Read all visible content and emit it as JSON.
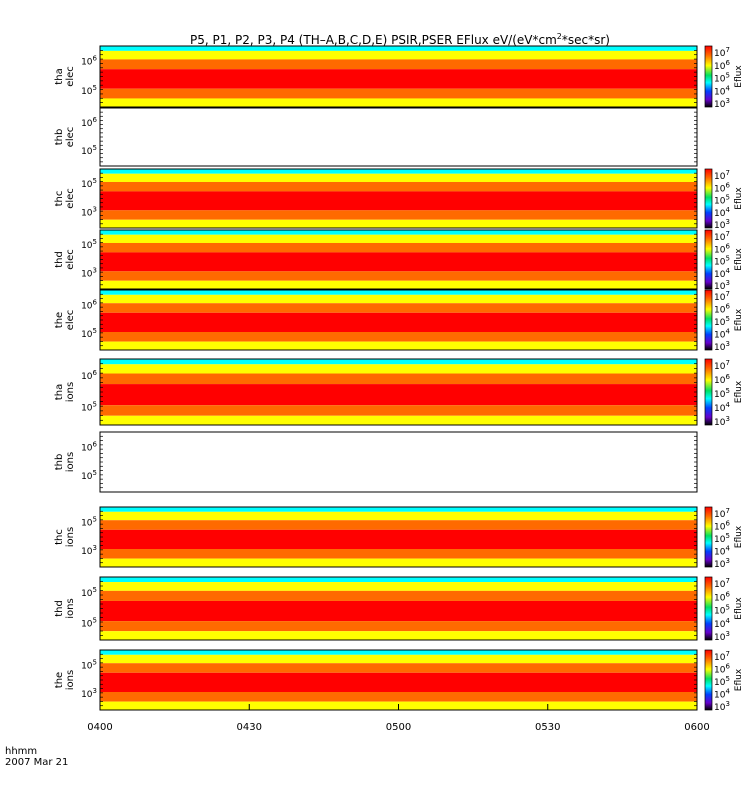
{
  "title": {
    "text": "P5, P1, P2, P3, P4 (TH–A,B,C,D,E) PSIR,PSER EFlux eV/(eV*cm",
    "sup": "2",
    "tail": "*sec*sr)"
  },
  "time_axis": {
    "label": "hhmm",
    "date": "2007 Mar 21",
    "start": "0400",
    "end": "0600",
    "ticks": [
      "0400",
      "0430",
      "0500",
      "0530",
      "0600"
    ]
  },
  "colorbar": {
    "label": "Eflux",
    "exponents": [
      "7",
      "6",
      "5",
      "4",
      "3"
    ],
    "base": "10",
    "colors": [
      "#ff0000",
      "#ff6a00",
      "#ffff00",
      "#00e060",
      "#00ffff",
      "#0040ff",
      "#6600cc",
      "#000000"
    ]
  },
  "chart_data": {
    "type": "heatmap",
    "x_unit": "time (hhmm)",
    "xlim": [
      "0400",
      "0600"
    ],
    "panels": [
      {
        "probe": "tha",
        "species": "elec",
        "yticks": [
          [
            "10",
            "6"
          ],
          [
            "10",
            "5"
          ]
        ],
        "has_data": true,
        "colorbar": true
      },
      {
        "probe": "thb",
        "species": "elec",
        "yticks": [
          [
            "10",
            "6"
          ],
          [
            "10",
            "5"
          ]
        ],
        "has_data": false,
        "colorbar": false
      },
      {
        "probe": "thc",
        "species": "elec",
        "yticks": [
          [
            "10",
            "5"
          ],
          [
            "10",
            "3"
          ]
        ],
        "has_data": true,
        "colorbar": true
      },
      {
        "probe": "thd",
        "species": "elec",
        "yticks": [
          [
            "10",
            "5"
          ],
          [
            "10",
            "3"
          ]
        ],
        "has_data": true,
        "colorbar": true
      },
      {
        "probe": "the",
        "species": "elec",
        "yticks": [
          [
            "10",
            "6"
          ],
          [
            "10",
            "5"
          ]
        ],
        "has_data": true,
        "colorbar": true
      },
      {
        "probe": "tha",
        "species": "ions",
        "yticks": [
          [
            "10",
            "6"
          ],
          [
            "10",
            "5"
          ]
        ],
        "has_data": true,
        "colorbar": true
      },
      {
        "probe": "thb",
        "species": "ions",
        "yticks": [
          [
            "10",
            "6"
          ],
          [
            "10",
            "5"
          ]
        ],
        "has_data": false,
        "colorbar": false
      },
      {
        "probe": "thc",
        "species": "ions",
        "yticks": [
          [
            "10",
            "5"
          ],
          [
            "10",
            "3"
          ]
        ],
        "has_data": true,
        "colorbar": true
      },
      {
        "probe": "thd",
        "species": "ions",
        "yticks": [
          [
            "10",
            "5"
          ],
          [
            "10",
            "5"
          ]
        ],
        "has_data": true,
        "colorbar": true
      },
      {
        "probe": "the",
        "species": "ions",
        "yticks": [
          [
            "10",
            "5"
          ],
          [
            "10",
            "3"
          ]
        ],
        "has_data": true,
        "colorbar": true
      }
    ]
  }
}
